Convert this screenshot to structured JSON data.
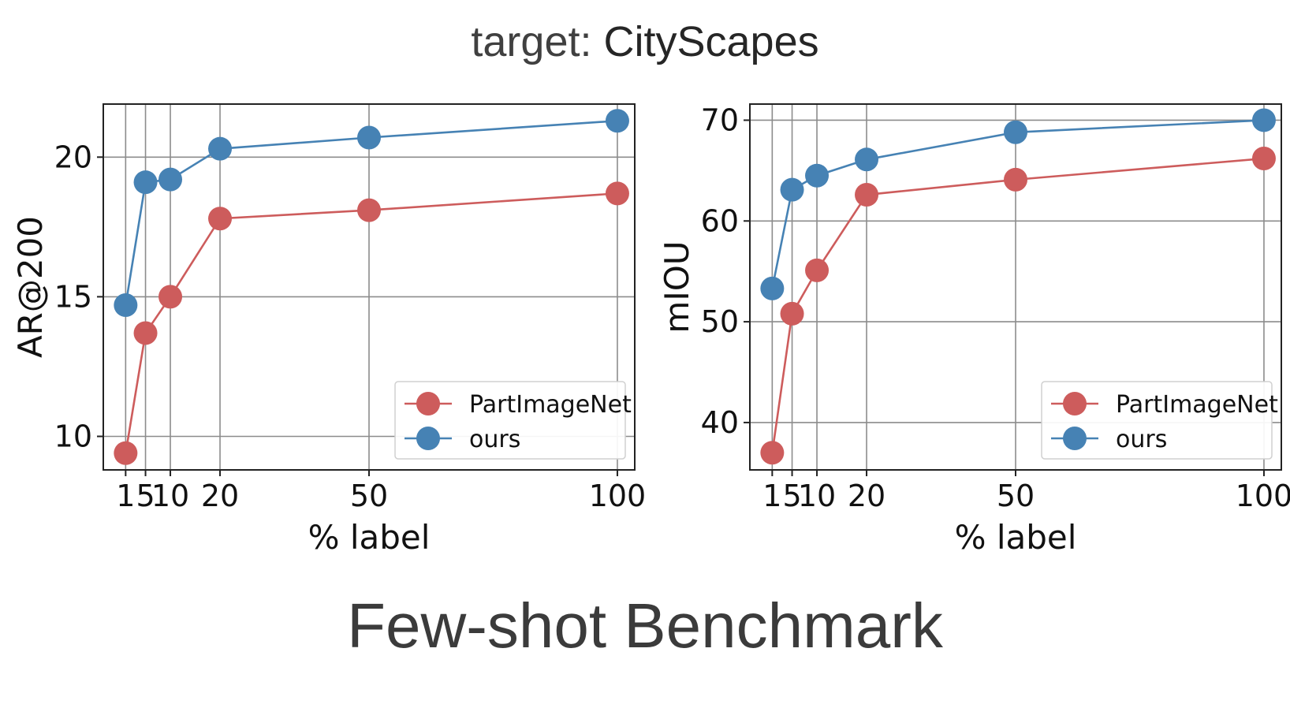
{
  "header": {
    "prefix": "target: ",
    "value": "CityScapes"
  },
  "footer": {
    "title": "Few-shot Benchmark"
  },
  "colors": {
    "PartImageNet": "#cd5c5c",
    "ours": "#4682b4",
    "grid": "#8c8c8c"
  },
  "chart_data": [
    {
      "type": "line",
      "title": "",
      "xlabel": "% label",
      "ylabel": "AR@200",
      "x": [
        1,
        5,
        10,
        20,
        50,
        100
      ],
      "x_tick_labels": [
        "1",
        "5",
        "10",
        "20",
        "50",
        "100"
      ],
      "y_ticks": [
        10,
        15,
        20
      ],
      "ylim": [
        8.8,
        21.9
      ],
      "xlim": [
        -3.5,
        103.5
      ],
      "grid": true,
      "legend": "bottom-right",
      "series": [
        {
          "name": "PartImageNet",
          "values": [
            9.4,
            13.7,
            15.0,
            17.8,
            18.1,
            18.7
          ]
        },
        {
          "name": "ours",
          "values": [
            14.7,
            19.1,
            19.2,
            20.3,
            20.7,
            21.3
          ]
        }
      ]
    },
    {
      "type": "line",
      "title": "",
      "xlabel": "% label",
      "ylabel": "mIOU",
      "x": [
        1,
        5,
        10,
        20,
        50,
        100
      ],
      "x_tick_labels": [
        "1",
        "5",
        "10",
        "20",
        "50",
        "100"
      ],
      "y_ticks": [
        40,
        50,
        60,
        70
      ],
      "ylim": [
        35.3,
        71.6
      ],
      "xlim": [
        -3.5,
        103.5
      ],
      "grid": true,
      "legend": "bottom-right",
      "series": [
        {
          "name": "PartImageNet",
          "values": [
            37.0,
            50.8,
            55.1,
            62.6,
            64.1,
            66.2
          ]
        },
        {
          "name": "ours",
          "values": [
            53.3,
            63.1,
            64.5,
            66.1,
            68.8,
            70.0
          ]
        }
      ]
    }
  ]
}
